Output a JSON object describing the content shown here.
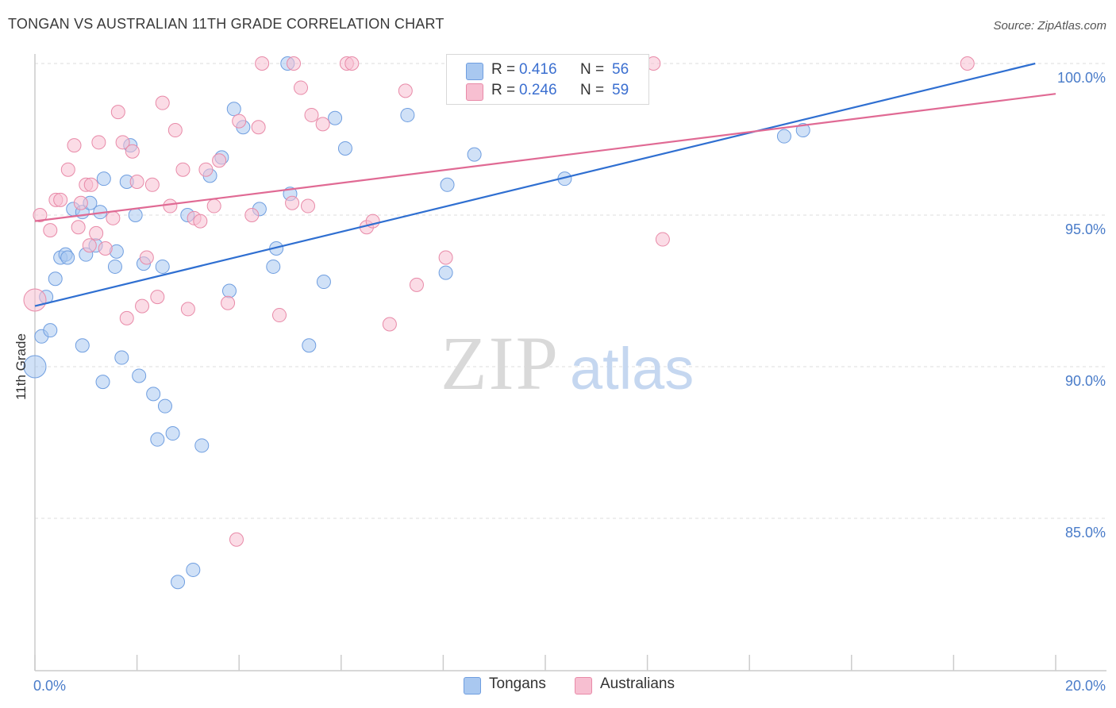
{
  "title": "TONGAN VS AUSTRALIAN 11TH GRADE CORRELATION CHART",
  "source": "Source: ZipAtlas.com",
  "watermark": {
    "zip": "ZIP",
    "atlas": "atlas"
  },
  "legend": {
    "rows": [
      {
        "r_label": "R =",
        "r_value": "0.416",
        "n_label": "N =",
        "n_value": "56",
        "color": "#a9c8f0",
        "border": "#6f9ee0"
      },
      {
        "r_label": "R =",
        "r_value": "0.246",
        "n_label": "N =",
        "n_value": "59",
        "color": "#f7bfd1",
        "border": "#e88aa8"
      }
    ]
  },
  "bottom_legend": [
    {
      "label": "Tongans",
      "color": "#a9c8f0",
      "border": "#6f9ee0"
    },
    {
      "label": "Australians",
      "color": "#f7bfd1",
      "border": "#e88aa8"
    }
  ],
  "chart_data": {
    "type": "scatter",
    "title": "TONGAN VS AUSTRALIAN 11TH GRADE CORRELATION CHART",
    "xlabel": "",
    "ylabel": "11th Grade",
    "xlim": [
      0,
      20
    ],
    "ylim": [
      80.2,
      101.5
    ],
    "x_tick_labels": [
      "0.0%",
      "20.0%"
    ],
    "y_ticks": [
      85,
      90,
      95,
      100
    ],
    "y_tick_labels": [
      "85.0%",
      "90.0%",
      "95.0%",
      "100.0%"
    ],
    "grid": true,
    "legend_position": "top-center",
    "series": [
      {
        "name": "Tongans",
        "color": "#6f9ee0",
        "fill": "#a9c8f0",
        "trend": {
          "x": [
            0.0,
            19.6
          ],
          "y": [
            92.0,
            100.0
          ],
          "color": "#2f6fd1"
        },
        "points": [
          [
            0.0,
            90.0
          ],
          [
            0.13,
            91.0
          ],
          [
            0.3,
            91.2
          ],
          [
            0.22,
            92.3
          ],
          [
            0.4,
            92.9
          ],
          [
            0.5,
            93.6
          ],
          [
            0.6,
            93.7
          ],
          [
            0.64,
            93.6
          ],
          [
            0.75,
            95.2
          ],
          [
            0.93,
            95.1
          ],
          [
            1.0,
            93.7
          ],
          [
            1.08,
            95.4
          ],
          [
            1.19,
            94.0
          ],
          [
            1.28,
            95.1
          ],
          [
            1.35,
            96.2
          ],
          [
            1.57,
            93.3
          ],
          [
            1.6,
            93.8
          ],
          [
            1.7,
            90.3
          ],
          [
            1.8,
            96.1
          ],
          [
            1.87,
            97.3
          ],
          [
            1.97,
            95.0
          ],
          [
            2.04,
            89.7
          ],
          [
            2.13,
            93.4
          ],
          [
            2.32,
            89.1
          ],
          [
            2.4,
            87.6
          ],
          [
            2.5,
            93.3
          ],
          [
            2.55,
            88.7
          ],
          [
            2.7,
            87.8
          ],
          [
            2.99,
            95.0
          ],
          [
            3.27,
            87.4
          ],
          [
            3.43,
            96.3
          ],
          [
            3.66,
            96.9
          ],
          [
            3.81,
            92.5
          ],
          [
            3.9,
            98.5
          ],
          [
            4.08,
            97.9
          ],
          [
            4.4,
            95.2
          ],
          [
            4.67,
            93.3
          ],
          [
            4.73,
            93.9
          ],
          [
            4.95,
            100.0
          ],
          [
            5.0,
            95.7
          ],
          [
            5.37,
            90.7
          ],
          [
            5.66,
            92.8
          ],
          [
            5.88,
            98.2
          ],
          [
            6.08,
            97.2
          ],
          [
            7.3,
            98.3
          ],
          [
            8.05,
            93.1
          ],
          [
            8.08,
            96.0
          ],
          [
            8.61,
            97.0
          ],
          [
            10.38,
            96.2
          ],
          [
            11.55,
            99.4
          ],
          [
            14.68,
            97.6
          ],
          [
            15.05,
            97.8
          ],
          [
            1.33,
            89.5
          ],
          [
            3.1,
            83.3
          ],
          [
            2.8,
            82.9
          ],
          [
            0.93,
            90.7
          ]
        ]
      },
      {
        "name": "Australians",
        "color": "#e88aa8",
        "fill": "#f7bfd1",
        "trend": {
          "x": [
            0.0,
            20.0
          ],
          "y": [
            94.8,
            99.0
          ],
          "color": "#e06a94"
        },
        "points": [
          [
            0.0,
            92.2
          ],
          [
            0.1,
            95.0
          ],
          [
            0.3,
            94.5
          ],
          [
            0.41,
            95.5
          ],
          [
            0.5,
            95.5
          ],
          [
            0.65,
            96.5
          ],
          [
            0.77,
            97.3
          ],
          [
            0.85,
            94.6
          ],
          [
            0.9,
            95.4
          ],
          [
            1.0,
            96.0
          ],
          [
            1.07,
            94.0
          ],
          [
            1.1,
            96.0
          ],
          [
            1.2,
            94.4
          ],
          [
            1.25,
            97.4
          ],
          [
            1.38,
            93.9
          ],
          [
            1.53,
            94.9
          ],
          [
            1.63,
            98.4
          ],
          [
            1.72,
            97.4
          ],
          [
            1.8,
            91.6
          ],
          [
            1.91,
            97.1
          ],
          [
            2.0,
            96.1
          ],
          [
            2.1,
            92.0
          ],
          [
            2.19,
            93.6
          ],
          [
            2.3,
            96.0
          ],
          [
            2.4,
            92.3
          ],
          [
            2.5,
            98.7
          ],
          [
            2.65,
            95.3
          ],
          [
            2.75,
            97.8
          ],
          [
            2.9,
            96.5
          ],
          [
            3.0,
            91.9
          ],
          [
            3.12,
            94.9
          ],
          [
            3.24,
            94.8
          ],
          [
            3.35,
            96.5
          ],
          [
            3.51,
            95.3
          ],
          [
            3.61,
            96.8
          ],
          [
            3.78,
            92.1
          ],
          [
            3.95,
            84.3
          ],
          [
            4.0,
            98.1
          ],
          [
            4.25,
            95.0
          ],
          [
            4.38,
            97.9
          ],
          [
            4.79,
            91.7
          ],
          [
            5.04,
            95.4
          ],
          [
            5.07,
            100.0
          ],
          [
            5.21,
            99.2
          ],
          [
            5.35,
            95.3
          ],
          [
            5.42,
            98.3
          ],
          [
            5.64,
            98.0
          ],
          [
            6.11,
            100.0
          ],
          [
            6.21,
            100.0
          ],
          [
            6.5,
            94.6
          ],
          [
            6.62,
            94.8
          ],
          [
            6.95,
            91.4
          ],
          [
            7.26,
            99.1
          ],
          [
            7.48,
            92.7
          ],
          [
            8.05,
            93.6
          ],
          [
            12.12,
            100.0
          ],
          [
            12.3,
            94.2
          ],
          [
            18.27,
            100.0
          ],
          [
            4.45,
            100.0
          ]
        ]
      }
    ]
  }
}
